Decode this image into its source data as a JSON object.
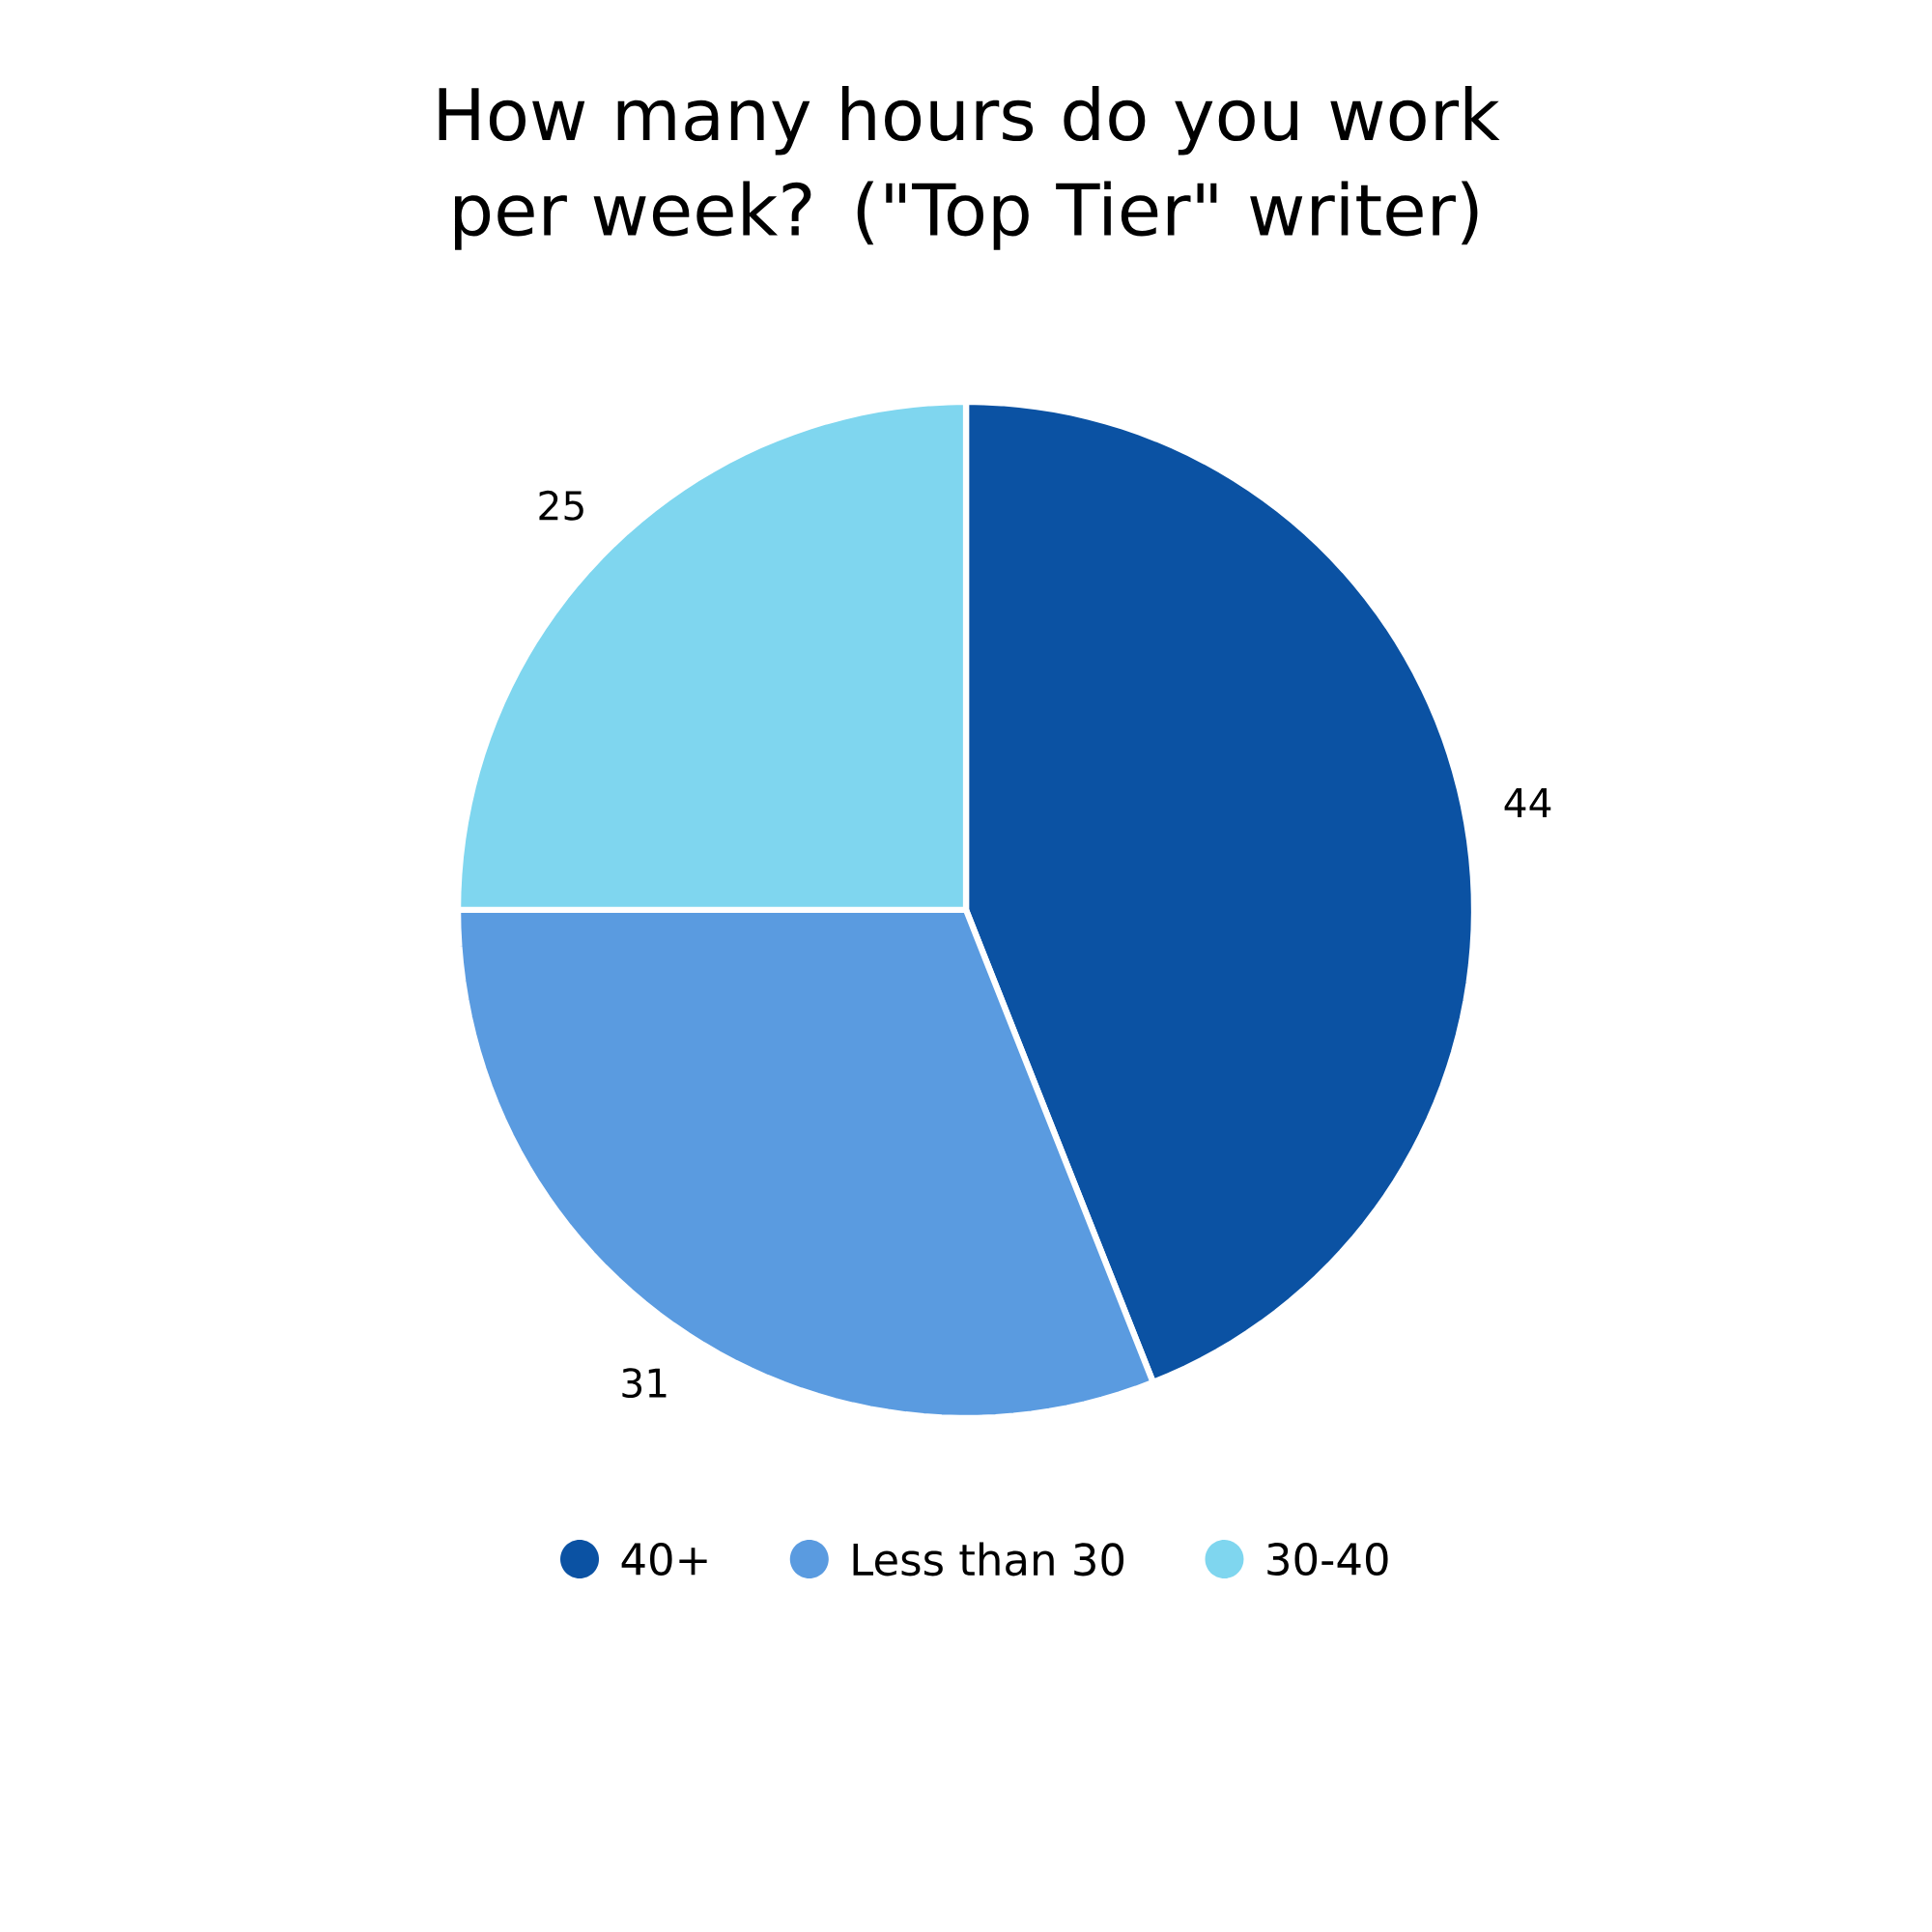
{
  "chart_data": {
    "type": "pie",
    "title": "How many hours do you work per week? (\"Top Tier\" writer)",
    "categories": [
      "40+",
      "Less than 30",
      "30-40"
    ],
    "values": [
      44,
      31,
      25
    ],
    "colors": [
      "#0b52a3",
      "#5a9be0",
      "#7fd6ef"
    ],
    "data_labels": true,
    "legend": "bottom"
  }
}
